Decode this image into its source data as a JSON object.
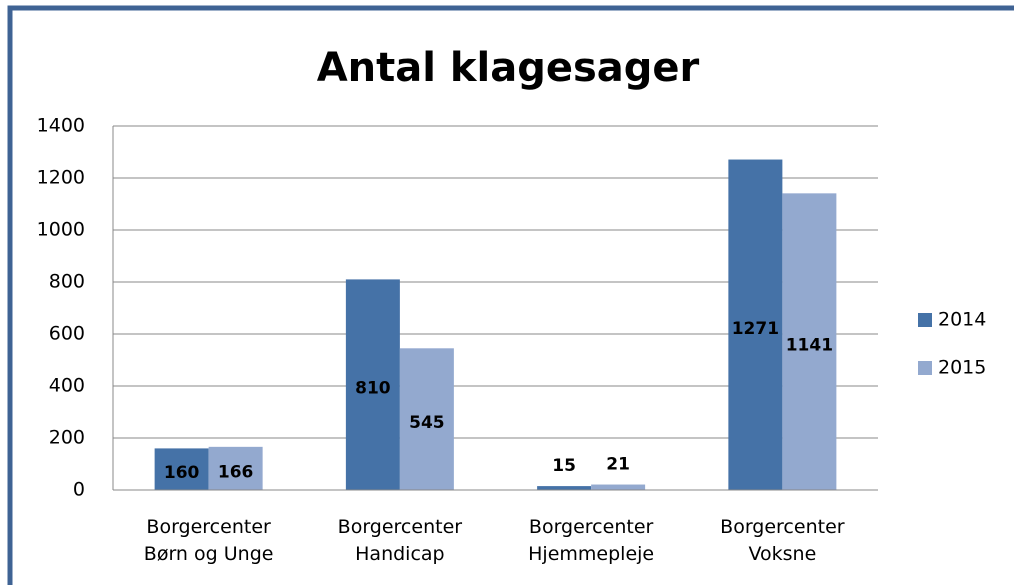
{
  "chart_data": {
    "type": "bar",
    "title": "Antal klagesager",
    "categories": [
      "Borgercenter Børn og Unge",
      "Borgercenter Handicap",
      "Borgercenter Hjemmepleje",
      "Borgercenter Voksne"
    ],
    "series": [
      {
        "name": "2014",
        "color": "#4572a7",
        "values": [
          160,
          810,
          15,
          1271
        ]
      },
      {
        "name": "2015",
        "color": "#93a9cf",
        "values": [
          166,
          545,
          21,
          1141
        ]
      }
    ],
    "ylim": [
      0,
      1400
    ],
    "yticks": [
      0,
      200,
      400,
      600,
      800,
      1000,
      1200,
      1400
    ],
    "grid": true,
    "legend": "right"
  }
}
